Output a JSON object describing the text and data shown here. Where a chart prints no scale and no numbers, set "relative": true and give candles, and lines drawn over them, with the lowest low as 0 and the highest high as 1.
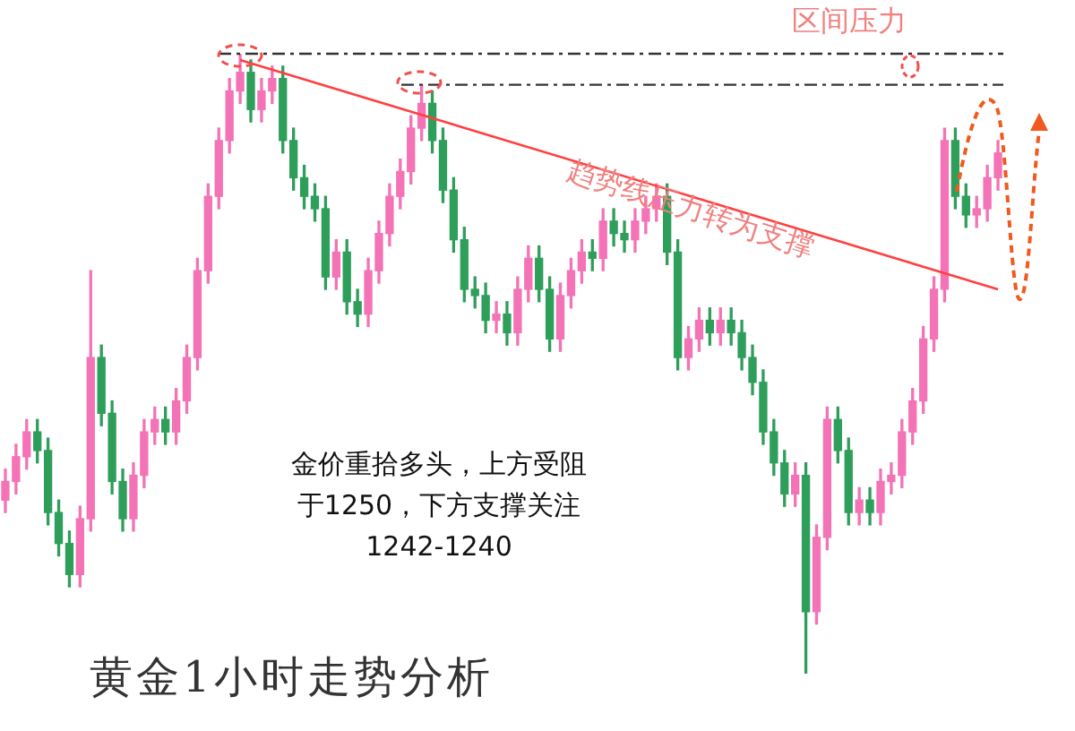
{
  "chart_data": {
    "type": "candlestick",
    "title": "黄金1小时走势分析",
    "relative": true,
    "tick_labels": false,
    "categories": [
      null,
      null,
      null,
      null,
      null,
      null,
      null,
      null,
      null,
      null,
      null,
      null,
      null,
      null,
      null,
      null,
      null,
      null,
      null,
      null,
      null,
      null,
      null,
      null,
      null,
      null,
      null,
      null,
      null,
      null,
      null,
      null,
      null,
      null,
      null,
      null,
      null,
      null,
      null,
      null,
      null,
      null,
      null,
      null,
      null,
      null,
      null,
      null,
      null,
      null,
      null,
      null,
      null,
      null,
      null,
      null,
      null,
      null,
      null,
      null,
      null,
      null,
      null,
      null,
      null,
      null,
      null,
      null,
      null,
      null,
      null,
      null,
      null,
      null,
      null,
      null,
      null,
      null,
      null,
      null,
      null,
      null,
      null,
      null,
      null,
      null,
      null,
      null,
      null,
      null,
      null,
      null,
      null,
      null
    ],
    "ohlc": [
      [
        0.28,
        0.33,
        0.26,
        0.31
      ],
      [
        0.31,
        0.37,
        0.29,
        0.35
      ],
      [
        0.35,
        0.41,
        0.33,
        0.39
      ],
      [
        0.39,
        0.41,
        0.34,
        0.36
      ],
      [
        0.36,
        0.38,
        0.24,
        0.26
      ],
      [
        0.26,
        0.28,
        0.19,
        0.21
      ],
      [
        0.21,
        0.23,
        0.14,
        0.16
      ],
      [
        0.16,
        0.27,
        0.14,
        0.25
      ],
      [
        0.25,
        0.65,
        0.23,
        0.51
      ],
      [
        0.51,
        0.53,
        0.4,
        0.42
      ],
      [
        0.42,
        0.44,
        0.29,
        0.31
      ],
      [
        0.31,
        0.33,
        0.23,
        0.25
      ],
      [
        0.25,
        0.34,
        0.23,
        0.32
      ],
      [
        0.32,
        0.41,
        0.3,
        0.39
      ],
      [
        0.39,
        0.43,
        0.37,
        0.41
      ],
      [
        0.41,
        0.43,
        0.37,
        0.39
      ],
      [
        0.39,
        0.46,
        0.37,
        0.44
      ],
      [
        0.44,
        0.53,
        0.42,
        0.51
      ],
      [
        0.51,
        0.67,
        0.49,
        0.65
      ],
      [
        0.65,
        0.79,
        0.63,
        0.77
      ],
      [
        0.77,
        0.88,
        0.75,
        0.86
      ],
      [
        0.86,
        0.96,
        0.84,
        0.94
      ],
      [
        0.94,
        1.0,
        0.92,
        0.97
      ],
      [
        0.97,
        0.99,
        0.89,
        0.91
      ],
      [
        0.91,
        0.96,
        0.89,
        0.94
      ],
      [
        0.94,
        0.98,
        0.92,
        0.96
      ],
      [
        0.96,
        0.98,
        0.84,
        0.86
      ],
      [
        0.86,
        0.88,
        0.78,
        0.8
      ],
      [
        0.8,
        0.82,
        0.75,
        0.77
      ],
      [
        0.77,
        0.79,
        0.73,
        0.75
      ],
      [
        0.75,
        0.77,
        0.62,
        0.64
      ],
      [
        0.64,
        0.7,
        0.62,
        0.68
      ],
      [
        0.68,
        0.7,
        0.58,
        0.6
      ],
      [
        0.6,
        0.62,
        0.56,
        0.58
      ],
      [
        0.58,
        0.67,
        0.56,
        0.65
      ],
      [
        0.65,
        0.73,
        0.63,
        0.71
      ],
      [
        0.71,
        0.79,
        0.69,
        0.77
      ],
      [
        0.77,
        0.83,
        0.75,
        0.81
      ],
      [
        0.81,
        0.9,
        0.79,
        0.88
      ],
      [
        0.88,
        0.95,
        0.86,
        0.92
      ],
      [
        0.92,
        0.94,
        0.84,
        0.86
      ],
      [
        0.86,
        0.88,
        0.76,
        0.78
      ],
      [
        0.78,
        0.8,
        0.68,
        0.7
      ],
      [
        0.7,
        0.72,
        0.6,
        0.62
      ],
      [
        0.62,
        0.64,
        0.59,
        0.61
      ],
      [
        0.61,
        0.63,
        0.55,
        0.57
      ],
      [
        0.57,
        0.6,
        0.55,
        0.58
      ],
      [
        0.58,
        0.6,
        0.53,
        0.55
      ],
      [
        0.55,
        0.64,
        0.53,
        0.62
      ],
      [
        0.62,
        0.69,
        0.6,
        0.67
      ],
      [
        0.67,
        0.69,
        0.6,
        0.62
      ],
      [
        0.62,
        0.64,
        0.52,
        0.54
      ],
      [
        0.54,
        0.63,
        0.52,
        0.61
      ],
      [
        0.61,
        0.67,
        0.59,
        0.65
      ],
      [
        0.65,
        0.7,
        0.63,
        0.68
      ],
      [
        0.68,
        0.7,
        0.65,
        0.67
      ],
      [
        0.67,
        0.75,
        0.65,
        0.73
      ],
      [
        0.73,
        0.75,
        0.69,
        0.71
      ],
      [
        0.71,
        0.73,
        0.68,
        0.7
      ],
      [
        0.7,
        0.75,
        0.68,
        0.73
      ],
      [
        0.73,
        0.77,
        0.71,
        0.75
      ],
      [
        0.75,
        0.79,
        0.73,
        0.77
      ],
      [
        0.77,
        0.79,
        0.66,
        0.68
      ],
      [
        0.68,
        0.7,
        0.49,
        0.51
      ],
      [
        0.51,
        0.56,
        0.49,
        0.54
      ],
      [
        0.54,
        0.59,
        0.52,
        0.57
      ],
      [
        0.57,
        0.59,
        0.53,
        0.55
      ],
      [
        0.55,
        0.59,
        0.53,
        0.57
      ],
      [
        0.57,
        0.59,
        0.53,
        0.55
      ],
      [
        0.55,
        0.57,
        0.49,
        0.51
      ],
      [
        0.51,
        0.53,
        0.45,
        0.47
      ],
      [
        0.47,
        0.49,
        0.37,
        0.39
      ],
      [
        0.39,
        0.41,
        0.32,
        0.34
      ],
      [
        0.34,
        0.36,
        0.27,
        0.29
      ],
      [
        0.29,
        0.34,
        0.27,
        0.32
      ],
      [
        0.32,
        0.34,
        0.0,
        0.1
      ],
      [
        0.1,
        0.24,
        0.08,
        0.22
      ],
      [
        0.22,
        0.43,
        0.2,
        0.41
      ],
      [
        0.41,
        0.43,
        0.34,
        0.36
      ],
      [
        0.36,
        0.38,
        0.24,
        0.26
      ],
      [
        0.26,
        0.3,
        0.24,
        0.28
      ],
      [
        0.28,
        0.3,
        0.24,
        0.26
      ],
      [
        0.26,
        0.33,
        0.24,
        0.31
      ],
      [
        0.31,
        0.34,
        0.29,
        0.32
      ],
      [
        0.32,
        0.41,
        0.3,
        0.39
      ],
      [
        0.39,
        0.46,
        0.37,
        0.44
      ],
      [
        0.44,
        0.56,
        0.42,
        0.54
      ],
      [
        0.54,
        0.64,
        0.52,
        0.62
      ],
      [
        0.62,
        0.88,
        0.6,
        0.86
      ],
      [
        0.86,
        0.88,
        0.75,
        0.77
      ],
      [
        0.77,
        0.79,
        0.72,
        0.74
      ],
      [
        0.74,
        0.77,
        0.72,
        0.75
      ],
      [
        0.75,
        0.82,
        0.73,
        0.8
      ],
      [
        0.8,
        0.86,
        0.78,
        0.84
      ]
    ],
    "colors": [
      "#f472b6",
      "#f472b6",
      "#f472b6",
      "#2e9e5b",
      "#2e9e5b",
      "#2e9e5b",
      "#2e9e5b",
      "#f472b6",
      "#f472b6",
      "#2e9e5b",
      "#2e9e5b",
      "#2e9e5b",
      "#f472b6",
      "#f472b6",
      "#f472b6",
      "#2e9e5b",
      "#f472b6",
      "#f472b6",
      "#f472b6",
      "#f472b6",
      "#f472b6",
      "#f472b6",
      "#f472b6",
      "#2e9e5b",
      "#f472b6",
      "#f472b6",
      "#2e9e5b",
      "#2e9e5b",
      "#2e9e5b",
      "#2e9e5b",
      "#2e9e5b",
      "#f472b6",
      "#2e9e5b",
      "#2e9e5b",
      "#f472b6",
      "#f472b6",
      "#f472b6",
      "#f472b6",
      "#f472b6",
      "#f472b6",
      "#2e9e5b",
      "#2e9e5b",
      "#2e9e5b",
      "#2e9e5b",
      "#2e9e5b",
      "#2e9e5b",
      "#f472b6",
      "#2e9e5b",
      "#f472b6",
      "#f472b6",
      "#2e9e5b",
      "#2e9e5b",
      "#f472b6",
      "#f472b6",
      "#f472b6",
      "#2e9e5b",
      "#f472b6",
      "#2e9e5b",
      "#2e9e5b",
      "#f472b6",
      "#f472b6",
      "#f472b6",
      "#2e9e5b",
      "#2e9e5b",
      "#f472b6",
      "#f472b6",
      "#2e9e5b",
      "#f472b6",
      "#2e9e5b",
      "#2e9e5b",
      "#2e9e5b",
      "#2e9e5b",
      "#2e9e5b",
      "#2e9e5b",
      "#f472b6",
      "#2e9e5b",
      "#f472b6",
      "#f472b6",
      "#2e9e5b",
      "#2e9e5b",
      "#f472b6",
      "#2e9e5b",
      "#f472b6",
      "#f472b6",
      "#f472b6",
      "#f472b6",
      "#f472b6",
      "#f472b6",
      "#f472b6",
      "#2e9e5b",
      "#2e9e5b",
      "#f472b6",
      "#f472b6",
      "#f472b6"
    ],
    "series": [
      {
        "type": "line",
        "color": "#ff4040",
        "values": [
          null,
          null,
          null,
          null,
          null,
          null,
          null,
          null,
          null,
          null,
          null,
          null,
          null,
          null,
          null,
          null,
          null,
          null,
          null,
          null,
          null,
          null,
          0.99,
          null,
          null,
          null,
          null,
          null,
          null,
          null,
          null,
          null,
          null,
          null,
          null,
          null,
          null,
          null,
          null,
          null,
          null,
          null,
          null,
          null,
          null,
          null,
          null,
          null,
          null,
          null,
          null,
          null,
          null,
          null,
          null,
          null,
          null,
          null,
          null,
          null,
          null,
          null,
          null,
          null,
          null,
          null,
          null,
          null,
          null,
          null,
          null,
          null,
          null,
          null,
          null,
          null,
          null,
          null,
          null,
          null,
          null,
          null,
          null,
          null,
          null,
          null,
          null,
          null,
          null,
          null,
          null,
          null,
          null,
          0.62
        ]
      }
    ],
    "ref_lines": [
      {
        "axis": "y",
        "value": 1,
        "color": "#333333",
        "line_style": "dashed"
      },
      {
        "axis": "y",
        "value": 0.95,
        "color": "#333333",
        "line_style": "dashed"
      }
    ],
    "annotations": [
      "区间压力",
      "趋势线压力转为支撑",
      "金价重拾多头，上方受阻",
      "于1250，下方支撑关注",
      "1242-1240"
    ]
  }
}
